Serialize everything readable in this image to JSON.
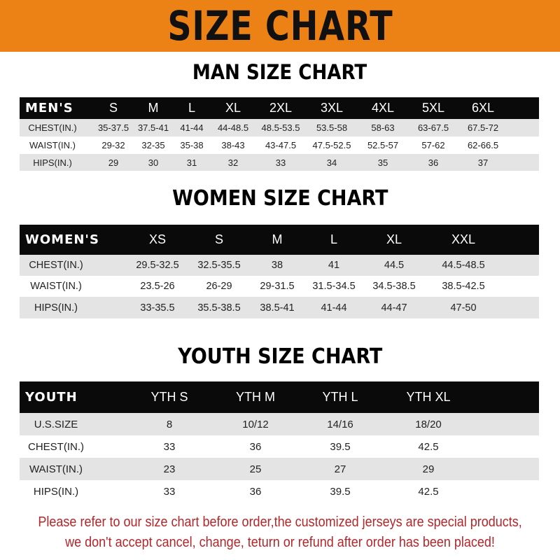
{
  "banner_title": "SIZE CHART",
  "colors": {
    "banner": "#ec8116",
    "header_row": "#0a0a0a",
    "stripe": "#e4e4e4",
    "notice": "#b3262a"
  },
  "men": {
    "title": "MAN SIZE CHART",
    "header": [
      "MEN'S",
      "S",
      "M",
      "L",
      "XL",
      "2XL",
      "3XL",
      "4XL",
      "5XL",
      "6XL"
    ],
    "rows": [
      [
        "CHEST(IN.)",
        "35-37.5",
        "37.5-41",
        "41-44",
        "44-48.5",
        "48.5-53.5",
        "53.5-58",
        "58-63",
        "63-67.5",
        "67.5-72"
      ],
      [
        "WAIST(IN.)",
        "29-32",
        "32-35",
        "35-38",
        "38-43",
        "43-47.5",
        "47.5-52.5",
        "52.5-57",
        "57-62",
        "62-66.5"
      ],
      [
        "HIPS(IN.)",
        "29",
        "30",
        "31",
        "32",
        "33",
        "34",
        "35",
        "36",
        "37"
      ]
    ]
  },
  "women": {
    "title": "WOMEN SIZE CHART",
    "header": [
      "WOMEN'S",
      "XS",
      "S",
      "M",
      "L",
      "XL",
      "XXL"
    ],
    "rows": [
      [
        "CHEST(IN.)",
        "29.5-32.5",
        "32.5-35.5",
        "38",
        "41",
        "44.5",
        "44.5-48.5"
      ],
      [
        "WAIST(IN.)",
        "23.5-26",
        "26-29",
        "29-31.5",
        "31.5-34.5",
        "34.5-38.5",
        "38.5-42.5"
      ],
      [
        "HIPS(IN.)",
        "33-35.5",
        "35.5-38.5",
        "38.5-41",
        "41-44",
        "44-47",
        "47-50"
      ]
    ]
  },
  "youth": {
    "title": "YOUTH SIZE CHART",
    "header": [
      "YOUTH",
      "YTH S",
      "YTH M",
      "YTH L",
      "YTH XL"
    ],
    "rows": [
      [
        "U.S.SIZE",
        "8",
        "10/12",
        "14/16",
        "18/20"
      ],
      [
        "CHEST(IN.)",
        "33",
        "36",
        "39.5",
        "42.5"
      ],
      [
        "WAIST(IN.)",
        "23",
        "25",
        "27",
        "29"
      ],
      [
        "HIPS(IN.)",
        "33",
        "36",
        "39.5",
        "42.5"
      ]
    ]
  },
  "notice": {
    "line1": "Please refer to our size chart before order,the customized jerseys are special products,",
    "line2": "we don't accept cancel, change, teturn or refund after order has been placed!"
  }
}
